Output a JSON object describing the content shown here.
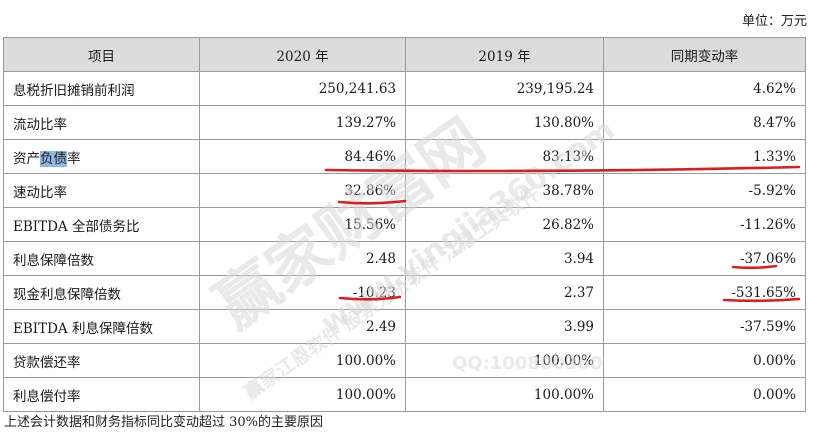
{
  "unit_label": "单位：万元",
  "table": {
    "headers": [
      "项目",
      "2020 年",
      "2019 年",
      "同期变动率"
    ],
    "rows": [
      {
        "item": "息税折旧摊销前利润",
        "y2020": "250,241.63",
        "y2019": "239,195.24",
        "change": "4.62%"
      },
      {
        "item": "流动比率",
        "y2020": "139.27%",
        "y2019": "130.80%",
        "change": "8.47%"
      },
      {
        "item_prefix": "资产",
        "item_highlight": "负债",
        "item_suffix": "率",
        "y2020": "84.46%",
        "y2019": "83.13%",
        "change": "1.33%"
      },
      {
        "item": "速动比率",
        "y2020": "32.86%",
        "y2019": "38.78%",
        "change": "-5.92%"
      },
      {
        "item": "EBITDA 全部债务比",
        "y2020": "15.56%",
        "y2019": "26.82%",
        "change": "-11.26%"
      },
      {
        "item": "利息保障倍数",
        "y2020": "2.48",
        "y2019": "3.94",
        "change": "-37.06%"
      },
      {
        "item": "现金利息保障倍数",
        "y2020": "-10.23",
        "y2019": "2.37",
        "change": "-531.65%"
      },
      {
        "item": "EBITDA 利息保障倍数",
        "y2020": "2.49",
        "y2019": "3.99",
        "change": "-37.59%"
      },
      {
        "item": "贷款偿还率",
        "y2020": "100.00%",
        "y2019": "100.00%",
        "change": "0.00%"
      },
      {
        "item": "利息偿付率",
        "y2020": "100.00%",
        "y2019": "100.00%",
        "change": "0.00%"
      }
    ]
  },
  "footer_text": "上述会计数据和财务指标同比变动超过 30%的主要原因",
  "watermark": {
    "big": "赢家财富网",
    "mid": "赢家江恩软件  股票分析软件  江恩工具软件",
    "url": "www.yingjia360.com",
    "qq": "QQ:100800360"
  },
  "colors": {
    "header_bg": "#dcdcdc",
    "annotation_red": "#d81e1e",
    "highlight": "#8fb8e6"
  }
}
